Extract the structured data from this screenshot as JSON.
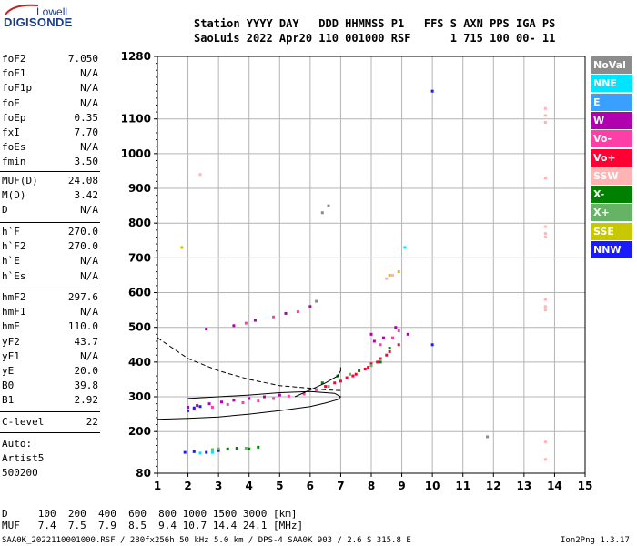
{
  "logo": {
    "top": "Lowell",
    "main": "DIGISONDE"
  },
  "header": {
    "line1": "Station YYYY DAY   DDD HHMMSS P1   FFS S AXN PPS IGA PS",
    "line2": "SaoLuis 2022 Apr20 110 001000 RSF      1 715 100 00- 11"
  },
  "params_group1": [
    {
      "name": "foF2",
      "value": "7.050"
    },
    {
      "name": "foF1",
      "value": "N/A"
    },
    {
      "name": "foF1p",
      "value": "N/A"
    },
    {
      "name": "foE",
      "value": "N/A"
    },
    {
      "name": "foEp",
      "value": "0.35"
    },
    {
      "name": "fxI",
      "value": "7.70"
    },
    {
      "name": "foEs",
      "value": "N/A"
    },
    {
      "name": "fmin",
      "value": "3.50"
    }
  ],
  "params_group2": [
    {
      "name": "MUF(D)",
      "value": "24.08"
    },
    {
      "name": "M(D)",
      "value": "3.42"
    },
    {
      "name": "D",
      "value": "N/A"
    }
  ],
  "params_group3": [
    {
      "name": "h`F",
      "value": "270.0"
    },
    {
      "name": "h`F2",
      "value": "270.0"
    },
    {
      "name": "h`E",
      "value": "N/A"
    },
    {
      "name": "h`Es",
      "value": "N/A"
    }
  ],
  "params_group4": [
    {
      "name": "hmF2",
      "value": "297.6"
    },
    {
      "name": "hmF1",
      "value": "N/A"
    },
    {
      "name": "hmE",
      "value": "110.0"
    },
    {
      "name": "yF2",
      "value": "43.7"
    },
    {
      "name": "yF1",
      "value": "N/A"
    },
    {
      "name": "yE",
      "value": "20.0"
    },
    {
      "name": "B0",
      "value": "39.8"
    },
    {
      "name": "B1",
      "value": "2.92"
    }
  ],
  "clevel": {
    "name": "C-level",
    "value": "22"
  },
  "auto": [
    "Auto:",
    "Artist5",
    "500200"
  ],
  "legend": [
    {
      "label": "NoVal",
      "color": "#8c8c8c"
    },
    {
      "label": "NNE",
      "color": "#00e5ff"
    },
    {
      "label": "E",
      "color": "#3aa0ff"
    },
    {
      "label": "W",
      "color": "#b000b0"
    },
    {
      "label": "Vo-",
      "color": "#ff3fa8"
    },
    {
      "label": "Vo+",
      "color": "#ff0033"
    },
    {
      "label": "SSW",
      "color": "#ffb3b3"
    },
    {
      "label": "X-",
      "color": "#008000"
    },
    {
      "label": "X+",
      "color": "#66b366"
    },
    {
      "label": "SSE",
      "color": "#c8c800"
    },
    {
      "label": "NNW",
      "color": "#1a1aff"
    }
  ],
  "bottom": {
    "line1": "D     100  200  400  600  800 1000 1500 3000 [km]",
    "line2": "MUF   7.4  7.5  7.9  8.5  9.4 10.7 14.4 24.1 [MHz]"
  },
  "footer": {
    "left": "SAA0K_2022110001000.RSF / 280fx256h 50 kHz 5.0 km / DPS-4 SAA0K 903 / 2.6 S 315.8 E",
    "right": "Ion2Png 1.3.17"
  },
  "chart_data": {
    "type": "scatter",
    "title": "",
    "xlabel": "",
    "ylabel": "",
    "xlim": [
      1,
      15
    ],
    "ylim": [
      80,
      1280
    ],
    "x_ticks": [
      1,
      2,
      3,
      4,
      5,
      6,
      7,
      8,
      9,
      10,
      11,
      12,
      13,
      14,
      15
    ],
    "y_ticks": [
      80,
      200,
      300,
      400,
      500,
      600,
      700,
      800,
      900,
      1000,
      1100,
      1280
    ],
    "grid": true,
    "series": [
      {
        "color": "#ff0033",
        "points": [
          [
            6.5,
            330
          ],
          [
            6.8,
            340
          ],
          [
            7.0,
            345
          ],
          [
            7.2,
            355
          ],
          [
            7.5,
            365
          ],
          [
            7.8,
            380
          ],
          [
            8.0,
            395
          ],
          [
            8.3,
            410
          ],
          [
            8.6,
            430
          ],
          [
            8.9,
            450
          ],
          [
            7.4,
            360
          ],
          [
            7.9,
            385
          ],
          [
            8.2,
            400
          ],
          [
            8.5,
            420
          ]
        ]
      },
      {
        "color": "#b000b0",
        "points": [
          [
            2.0,
            270
          ],
          [
            2.3,
            275
          ],
          [
            2.7,
            280
          ],
          [
            3.1,
            285
          ],
          [
            3.5,
            290
          ],
          [
            4.0,
            295
          ],
          [
            4.5,
            300
          ],
          [
            5.0,
            305
          ],
          [
            8.0,
            480
          ],
          [
            8.1,
            460
          ],
          [
            8.4,
            470
          ],
          [
            8.8,
            500
          ],
          [
            6.0,
            560
          ],
          [
            5.2,
            540
          ],
          [
            4.2,
            520
          ],
          [
            3.5,
            505
          ],
          [
            2.6,
            495
          ],
          [
            9.2,
            480
          ]
        ]
      },
      {
        "color": "#ff3fa8",
        "points": [
          [
            2.2,
            265
          ],
          [
            2.8,
            270
          ],
          [
            3.3,
            278
          ],
          [
            3.8,
            283
          ],
          [
            4.3,
            288
          ],
          [
            4.8,
            295
          ],
          [
            5.3,
            302
          ],
          [
            5.8,
            308
          ],
          [
            6.2,
            320
          ],
          [
            8.3,
            450
          ],
          [
            8.7,
            470
          ],
          [
            8.9,
            490
          ],
          [
            5.6,
            545
          ],
          [
            4.8,
            530
          ],
          [
            3.9,
            512
          ]
        ]
      },
      {
        "color": "#1a1aff",
        "points": [
          [
            2.0,
            260
          ],
          [
            2.2,
            268
          ],
          [
            2.4,
            272
          ],
          [
            1.9,
            140
          ],
          [
            2.2,
            142
          ],
          [
            2.6,
            140
          ],
          [
            3.0,
            145
          ],
          [
            10.0,
            1180
          ],
          [
            10.0,
            450
          ]
        ]
      },
      {
        "color": "#008000",
        "points": [
          [
            3.3,
            150
          ],
          [
            3.6,
            152
          ],
          [
            4.0,
            150
          ],
          [
            4.3,
            155
          ],
          [
            6.4,
            340
          ],
          [
            6.9,
            360
          ],
          [
            7.6,
            375
          ],
          [
            8.3,
            400
          ],
          [
            8.6,
            440
          ]
        ]
      },
      {
        "color": "#66b366",
        "points": [
          [
            2.8,
            148
          ],
          [
            3.0,
            150
          ],
          [
            3.9,
            152
          ],
          [
            6.6,
            330
          ],
          [
            7.3,
            365
          ],
          [
            8.0,
            390
          ]
        ]
      },
      {
        "color": "#00e5ff",
        "points": [
          [
            2.4,
            138
          ],
          [
            2.8,
            140
          ],
          [
            9.1,
            730
          ]
        ]
      },
      {
        "color": "#ffb3b3",
        "points": [
          [
            13.7,
            1130
          ],
          [
            13.7,
            1110
          ],
          [
            13.7,
            1090
          ],
          [
            13.7,
            790
          ],
          [
            13.7,
            770
          ],
          [
            13.7,
            760
          ],
          [
            13.7,
            580
          ],
          [
            13.7,
            560
          ],
          [
            13.7,
            550
          ],
          [
            13.7,
            170
          ],
          [
            13.7,
            120
          ],
          [
            13.7,
            930
          ],
          [
            2.4,
            940
          ],
          [
            8.5,
            640
          ],
          [
            8.7,
            650
          ]
        ]
      },
      {
        "color": "#c8c800",
        "points": [
          [
            1.8,
            730
          ],
          [
            8.6,
            650
          ],
          [
            8.9,
            660
          ]
        ]
      },
      {
        "color": "#8c8c8c",
        "points": [
          [
            6.4,
            830
          ],
          [
            6.6,
            850
          ],
          [
            11.8,
            185
          ],
          [
            6.2,
            575
          ]
        ]
      }
    ],
    "lines": [
      {
        "style": "dashed",
        "points": [
          [
            1.0,
            470
          ],
          [
            1.5,
            440
          ],
          [
            2.0,
            410
          ],
          [
            3.0,
            375
          ],
          [
            4.0,
            350
          ],
          [
            5.0,
            332
          ],
          [
            6.0,
            325
          ],
          [
            6.5,
            320
          ],
          [
            7.0,
            318
          ]
        ]
      },
      {
        "style": "solid",
        "points": [
          [
            1.0,
            235
          ],
          [
            2.0,
            238
          ],
          [
            3.0,
            242
          ],
          [
            4.0,
            250
          ],
          [
            5.0,
            260
          ],
          [
            6.0,
            272
          ],
          [
            6.5,
            282
          ],
          [
            6.9,
            292
          ],
          [
            7.0,
            300
          ],
          [
            6.8,
            310
          ],
          [
            6.0,
            315
          ],
          [
            5.0,
            312
          ],
          [
            4.0,
            305
          ],
          [
            3.0,
            300
          ],
          [
            2.0,
            295
          ]
        ]
      },
      {
        "style": "solid",
        "points": [
          [
            5.5,
            300
          ],
          [
            6.0,
            320
          ],
          [
            6.5,
            340
          ],
          [
            6.9,
            360
          ],
          [
            7.0,
            375
          ],
          [
            7.0,
            385
          ]
        ]
      }
    ]
  }
}
